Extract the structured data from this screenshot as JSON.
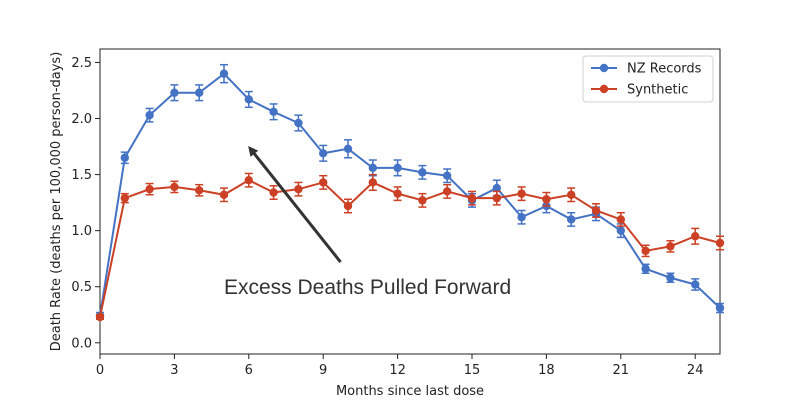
{
  "chart_data": {
    "type": "line",
    "xlabel": "Months since last dose",
    "ylabel": "Death Rate (deaths per 100,000 person-days)",
    "xlim": [
      0,
      25
    ],
    "ylim": [
      -0.1,
      2.62
    ],
    "xticks": [
      0,
      3,
      6,
      9,
      12,
      15,
      18,
      21,
      24
    ],
    "yticks": [
      0.0,
      0.5,
      1.0,
      1.5,
      2.0,
      2.5
    ],
    "ytick_labels": [
      "0.0",
      "0.5",
      "1.0",
      "1.5",
      "2.0",
      "2.5"
    ],
    "grid": false,
    "legend_position": "top-right",
    "x": [
      0,
      1,
      2,
      3,
      4,
      5,
      6,
      7,
      8,
      9,
      10,
      11,
      12,
      13,
      14,
      15,
      16,
      17,
      18,
      19,
      20,
      21,
      22,
      23,
      24,
      25
    ],
    "series": [
      {
        "name": "NZ Records",
        "color": "#4472c4",
        "values": [
          0.24,
          1.65,
          2.03,
          2.23,
          2.23,
          2.4,
          2.17,
          2.06,
          1.96,
          1.69,
          1.73,
          1.56,
          1.56,
          1.52,
          1.49,
          1.27,
          1.38,
          1.12,
          1.22,
          1.1,
          1.15,
          1.0,
          0.66,
          0.58,
          0.52,
          0.31
        ],
        "errors": [
          0.03,
          0.05,
          0.06,
          0.07,
          0.07,
          0.08,
          0.07,
          0.07,
          0.07,
          0.07,
          0.08,
          0.07,
          0.07,
          0.06,
          0.06,
          0.06,
          0.07,
          0.06,
          0.06,
          0.06,
          0.06,
          0.06,
          0.04,
          0.04,
          0.05,
          0.04
        ]
      },
      {
        "name": "Synthetic",
        "color": "#cc4125",
        "values": [
          0.23,
          1.29,
          1.37,
          1.39,
          1.36,
          1.32,
          1.45,
          1.34,
          1.37,
          1.43,
          1.22,
          1.43,
          1.33,
          1.27,
          1.35,
          1.29,
          1.29,
          1.33,
          1.28,
          1.32,
          1.18,
          1.1,
          0.82,
          0.86,
          0.95,
          0.89
        ],
        "errors": [
          0.02,
          0.04,
          0.05,
          0.05,
          0.05,
          0.06,
          0.06,
          0.06,
          0.06,
          0.06,
          0.06,
          0.07,
          0.06,
          0.06,
          0.06,
          0.06,
          0.06,
          0.06,
          0.06,
          0.06,
          0.06,
          0.06,
          0.05,
          0.05,
          0.07,
          0.06
        ]
      }
    ],
    "annotation": {
      "text": "Excess Deaths Pulled Forward",
      "arrow_from": [
        9.7,
        0.72
      ],
      "arrow_to": [
        6.1,
        1.72
      ],
      "color": "#333333"
    }
  }
}
